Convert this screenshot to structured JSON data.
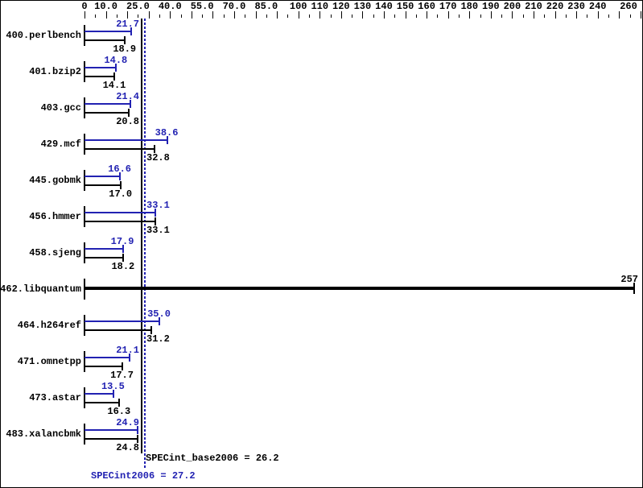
{
  "chart_data": {
    "type": "bar",
    "orientation": "horizontal",
    "xlim": [
      0,
      260
    ],
    "grid": false,
    "axis": {
      "position": "top",
      "minor_step": 5,
      "major_step": 10,
      "labels": [
        {
          "v": 0,
          "label": "0"
        },
        {
          "v": 10,
          "label": "10.0"
        },
        {
          "v": 25,
          "label": "25.0"
        },
        {
          "v": 40,
          "label": "40.0"
        },
        {
          "v": 55,
          "label": "55.0"
        },
        {
          "v": 70,
          "label": "70.0"
        },
        {
          "v": 85,
          "label": "85.0"
        },
        {
          "v": 100,
          "label": "100"
        },
        {
          "v": 110,
          "label": "110"
        },
        {
          "v": 120,
          "label": "120"
        },
        {
          "v": 130,
          "label": "130"
        },
        {
          "v": 140,
          "label": "140"
        },
        {
          "v": 150,
          "label": "150"
        },
        {
          "v": 160,
          "label": "160"
        },
        {
          "v": 170,
          "label": "170"
        },
        {
          "v": 180,
          "label": "180"
        },
        {
          "v": 190,
          "label": "190"
        },
        {
          "v": 200,
          "label": "200"
        },
        {
          "v": 210,
          "label": "210"
        },
        {
          "v": 220,
          "label": "220"
        },
        {
          "v": 230,
          "label": "230"
        },
        {
          "v": 240,
          "label": "240"
        },
        {
          "v": 260,
          "label": "260"
        }
      ]
    },
    "series": [
      {
        "key": "peak",
        "color": "#2222b2"
      },
      {
        "key": "base",
        "color": "#000000"
      }
    ],
    "benchmarks": [
      {
        "name": "400.perlbench",
        "peak": 21.7,
        "peak_label": "21.7",
        "base": 18.9,
        "base_label": "18.9"
      },
      {
        "name": "401.bzip2",
        "peak": 14.8,
        "peak_label": "14.8",
        "base": 14.1,
        "base_label": "14.1"
      },
      {
        "name": "403.gcc",
        "peak": 21.4,
        "peak_label": "21.4",
        "base": 20.8,
        "base_label": "20.8"
      },
      {
        "name": "429.mcf",
        "peak": 38.6,
        "peak_label": "38.6",
        "base": 32.8,
        "base_label": "32.8"
      },
      {
        "name": "445.gobmk",
        "peak": 16.6,
        "peak_label": "16.6",
        "base": 17.0,
        "base_label": "17.0"
      },
      {
        "name": "456.hmmer",
        "peak": 33.1,
        "peak_label": "33.1",
        "base": 33.1,
        "base_label": "33.1"
      },
      {
        "name": "458.sjeng",
        "peak": 17.9,
        "peak_label": "17.9",
        "base": 18.2,
        "base_label": "18.2"
      },
      {
        "name": "462.libquantum",
        "single": 257,
        "single_label": "257"
      },
      {
        "name": "464.h264ref",
        "peak": 35.0,
        "peak_label": "35.0",
        "base": 31.2,
        "base_label": "31.2"
      },
      {
        "name": "471.omnetpp",
        "peak": 21.1,
        "peak_label": "21.1",
        "base": 17.7,
        "base_label": "17.7"
      },
      {
        "name": "473.astar",
        "peak": 13.5,
        "peak_label": "13.5",
        "base": 16.3,
        "base_label": "16.3"
      },
      {
        "name": "483.xalancbmk",
        "peak": 24.9,
        "peak_label": "24.9",
        "base": 24.8,
        "base_label": "24.8"
      }
    ],
    "reference_lines": [
      {
        "name": "base",
        "value": 26.2,
        "label": "SPECint_base2006 = 26.2",
        "color": "#000000",
        "style": "solid"
      },
      {
        "name": "peak",
        "value": 27.2,
        "label": "SPECint2006 = 27.2",
        "color": "#2222b2",
        "style": "dotted"
      }
    ]
  },
  "colors": {
    "background": "#ffffff",
    "border": "#000000",
    "peak": "#2222b2",
    "base": "#000000"
  }
}
